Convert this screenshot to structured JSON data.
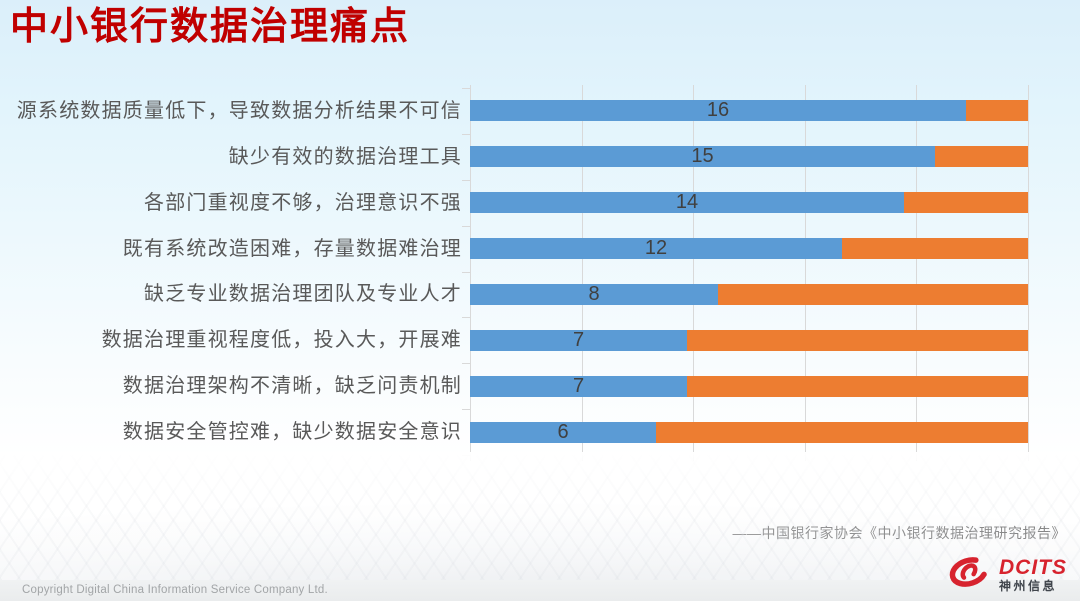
{
  "slide": {
    "title": "中小银行数据治理痛点",
    "source": "——中国银行家协会《中小银行数据治理研究报告》",
    "footer": {
      "copyright": "Copyright  Digital China Information Service Company Ltd."
    },
    "logo": {
      "icon": "swirl-comet-icon",
      "brand": "DCITS",
      "brand_cn": "神州信息",
      "brand_color": "#d7232e"
    },
    "colors": {
      "title_red": "#c00000",
      "label_gray": "#595959",
      "gridline_gray": "#d9d9d9",
      "background_top": "#dbeffa"
    }
  },
  "chart_data": {
    "type": "bar",
    "orientation": "horizontal",
    "stacked": true,
    "title": "",
    "xlabel": "",
    "ylabel": "",
    "xlim": [
      0,
      18
    ],
    "bar_total": 18,
    "gridline_intervals": 5,
    "grid": true,
    "legend": "none",
    "categories": [
      "源系统数据质量低下，导致数据分析结果不可信",
      "缺少有效的数据治理工具",
      "各部门重视度不够，治理意识不强",
      "既有系统改造困难，存量数据难治理",
      "缺乏专业数据治理团队及专业人才",
      "数据治理重视程度低，投入大，开展难",
      "数据治理架构不清晰，缺乏问责机制",
      "数据安全管控难，缺少数据安全意识"
    ],
    "series": [
      {
        "name": "value",
        "color": "#5B9BD5",
        "values": [
          16,
          15,
          14,
          12,
          8,
          7,
          7,
          6
        ],
        "data_labels": true
      },
      {
        "name": "remainder",
        "color": "#ED7D31",
        "values": [
          2,
          3,
          4,
          6,
          10,
          11,
          11,
          12
        ],
        "data_labels": false
      }
    ]
  }
}
